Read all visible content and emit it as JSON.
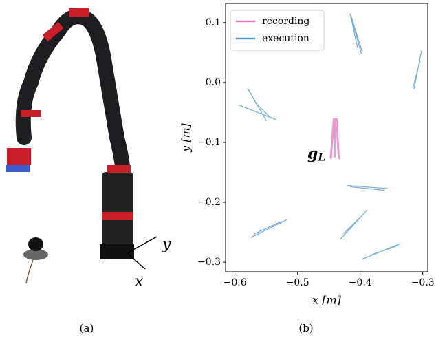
{
  "figure": {
    "captions": [
      "(a)",
      "(b)"
    ],
    "photo_labels": [
      "x",
      "y"
    ]
  },
  "chart_data": {
    "type": "line",
    "xlabel": "x [m]",
    "ylabel": "y [m]",
    "annotation": {
      "text": "g",
      "sub": "L",
      "x": -0.47,
      "y": -0.12
    },
    "xlim": [
      -0.615,
      -0.292
    ],
    "ylim": [
      -0.316,
      0.132
    ],
    "xticks": [
      {
        "value": -0.6,
        "label": "−0.6"
      },
      {
        "value": -0.5,
        "label": "−0.5"
      },
      {
        "value": -0.4,
        "label": "−0.4"
      },
      {
        "value": -0.3,
        "label": "−0.3"
      }
    ],
    "yticks": [
      0.1,
      {
        "value": 0.0,
        "label": "0.0"
      },
      {
        "value": -0.1,
        "label": "−0.1"
      },
      {
        "value": -0.2,
        "label": "−0.2"
      },
      {
        "value": -0.3,
        "label": "−0.3"
      }
    ],
    "legend": "upper left",
    "series": [
      {
        "name": "recording",
        "color": "#e377c2",
        "width": 3,
        "x": [
          -0.44,
          -0.441,
          null,
          -0.438,
          -0.434,
          null,
          -0.442,
          -0.447
        ],
        "values": [
          -0.06,
          -0.125,
          null,
          -0.06,
          -0.128,
          null,
          -0.06,
          -0.127
        ]
      },
      {
        "name": "execution",
        "color": "#4f93c8",
        "width": 1.3,
        "x": [
          -0.415,
          -0.397,
          null,
          -0.413,
          -0.398,
          null,
          -0.416,
          -0.404,
          null,
          -0.302,
          -0.314,
          null,
          -0.304,
          -0.316,
          null,
          -0.58,
          -0.55,
          null,
          -0.595,
          -0.534,
          null,
          -0.567,
          -0.542,
          null,
          -0.421,
          -0.356,
          null,
          -0.416,
          -0.361,
          null,
          -0.575,
          -0.517,
          null,
          -0.57,
          -0.526,
          null,
          -0.432,
          -0.389,
          null,
          -0.427,
          -0.396,
          null,
          -0.397,
          -0.336,
          null,
          -0.383,
          -0.339
        ],
        "values": [
          0.113,
          0.052,
          null,
          0.103,
          0.048,
          null,
          0.115,
          0.057,
          null,
          0.053,
          -0.011,
          null,
          0.037,
          -0.009,
          null,
          -0.009,
          -0.064,
          null,
          -0.037,
          -0.062,
          null,
          -0.034,
          -0.06,
          null,
          -0.172,
          -0.177,
          null,
          -0.174,
          -0.18,
          null,
          -0.259,
          -0.229,
          null,
          -0.253,
          -0.232,
          null,
          -0.262,
          -0.213,
          null,
          -0.253,
          -0.221,
          null,
          -0.295,
          -0.269,
          null,
          -0.288,
          -0.272
        ]
      }
    ]
  }
}
